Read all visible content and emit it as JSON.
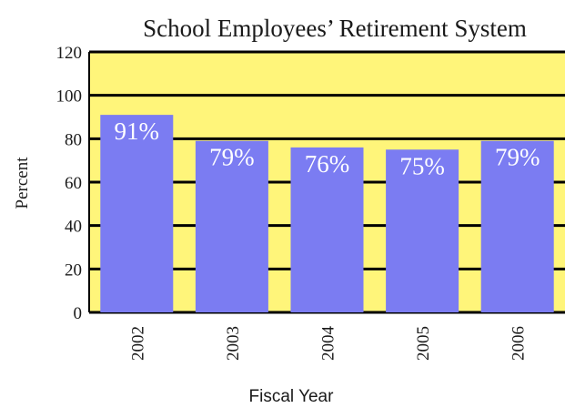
{
  "chart_data": {
    "type": "bar",
    "title": "School Employees’ Retirement System",
    "xlabel": "Fiscal Year",
    "ylabel": "Percent",
    "categories": [
      "2002",
      "2003",
      "2004",
      "2005",
      "2006"
    ],
    "values": [
      91,
      79,
      76,
      75,
      79
    ],
    "data_labels": [
      "91%",
      "79%",
      "76%",
      "75%",
      "79%"
    ],
    "ylim": [
      0,
      120
    ],
    "yticks": [
      "0",
      "20",
      "40",
      "60",
      "80",
      "100",
      "120"
    ],
    "grid": true,
    "legend": "none",
    "colors": {
      "plot_background": "#fff57a",
      "bar": "#7b7cf2",
      "gridline": "#000000",
      "data_label": "#ffffff"
    }
  }
}
